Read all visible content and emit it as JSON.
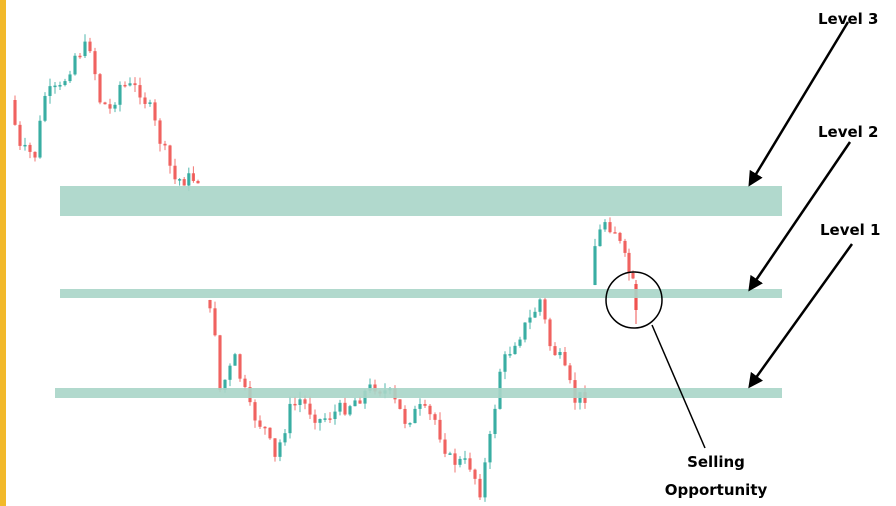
{
  "labels": {
    "level3": "Level 3",
    "level2": "Level 2",
    "level1": "Level 1"
  },
  "annotation": {
    "line1": "Selling",
    "line2": "Opportunity"
  }
}
